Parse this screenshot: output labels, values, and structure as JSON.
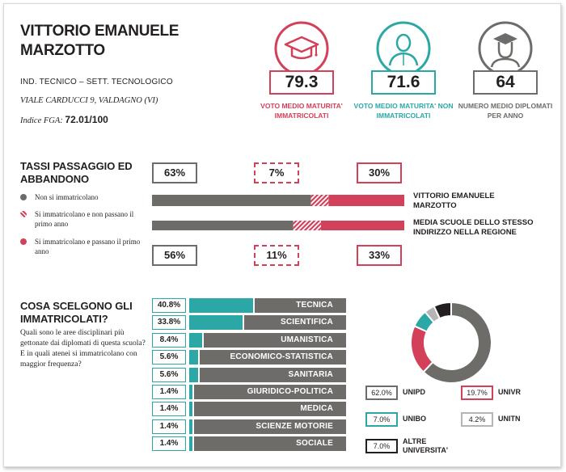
{
  "school": {
    "name": "VITTORIO EMANUELE MARZOTTO",
    "type": "IND. TECNICO – SETT. TECNOLOGICO",
    "address": "VIALE CARDUCCI 9, VALDAGNO (VI)",
    "fga_label": "Indice FGA:",
    "fga_value": "72.01/100"
  },
  "stats": [
    {
      "value": "79.3",
      "label": "VOTO MEDIO MATURITA' IMMATRICOLATI",
      "color": "#d2405a",
      "icon": "graduation-cap-icon"
    },
    {
      "value": "71.6",
      "label": "VOTO MEDIO MATURITA' NON IMMATRICOLATI",
      "color": "#2ba8a6",
      "icon": "person-icon"
    },
    {
      "value": "64",
      "label": "NUMERO MEDIO DIPLOMATI PER ANNO",
      "color": "#6d6c69",
      "icon": "graduate-person-icon"
    }
  ],
  "passage": {
    "title": "TASSI PASSAGGIO ED ABBANDONO",
    "legend": [
      {
        "label": "Non si immatricolano",
        "color": "#6d6c69",
        "pattern": "solid"
      },
      {
        "label": "Si immatricolano e non passano il primo anno",
        "color": "#d2405a",
        "pattern": "hatched"
      },
      {
        "label": "Si immatricolano e passano il primo anno",
        "color": "#d2405a",
        "pattern": "solid"
      }
    ],
    "school_label": "VITTORIO EMANUELE MARZOTTO",
    "region_label": "MEDIA SCUOLE DELLO STESSO INDIRIZZO NELLA REGIONE",
    "school_pcts": [
      "63%",
      "7%",
      "30%"
    ],
    "region_pcts": [
      "56%",
      "11%",
      "33%"
    ]
  },
  "choices": {
    "title": "COSA SCELGONO GLI IMMATRICOLATI?",
    "description": "Quali sono le aree disciplinari più gettonate dai diplomati di questa scuola? E in quali atenei si immatricolano con maggior frequenza?",
    "accent": "#2ba8a6",
    "bar_color": "#6d6c69"
  },
  "universities": {
    "items": [
      {
        "pct": "62.0%",
        "name": "UNIPD",
        "color": "#6d6c69"
      },
      {
        "pct": "19.7%",
        "name": "UNIVR",
        "color": "#d2405a"
      },
      {
        "pct": "7.0%",
        "name": "UNIBO",
        "color": "#2ba8a6"
      },
      {
        "pct": "4.2%",
        "name": "UNITN",
        "color": "#b5b5b5"
      },
      {
        "pct": "7.0%",
        "name": "ALTRE UNIVERSITA'",
        "color": "#231f20"
      }
    ]
  },
  "chart_data": [
    {
      "type": "bar",
      "title": "TASSI PASSAGGIO ED ABBANDONO",
      "stacked": true,
      "categories": [
        "VITTORIO EMANUELE MARZOTTO",
        "MEDIA SCUOLE DELLO STESSO INDIRIZZO NELLA REGIONE"
      ],
      "series": [
        {
          "name": "Non si immatricolano",
          "values": [
            63,
            56
          ],
          "color": "#6d6c69"
        },
        {
          "name": "Si immatricolano e non passano il primo anno",
          "values": [
            7,
            11
          ],
          "color": "#d2405a"
        },
        {
          "name": "Si immatricolano e passano il primo anno",
          "values": [
            30,
            33
          ],
          "color": "#d2405a"
        }
      ]
    },
    {
      "type": "bar",
      "title": "COSA SCELGONO GLI IMMATRICOLATI?",
      "categories": [
        "TECNICA",
        "SCIENTIFICA",
        "UMANISTICA",
        "ECONOMICO-STATISTICA",
        "SANITARIA",
        "GIURIDICO-POLITICA",
        "MEDICA",
        "SCIENZE MOTORIE",
        "SOCIALE"
      ],
      "values": [
        40.8,
        33.8,
        8.4,
        5.6,
        5.6,
        1.4,
        1.4,
        1.4,
        1.4
      ],
      "labels": [
        "40.8%",
        "33.8%",
        "8.4%",
        "5.6%",
        "5.6%",
        "1.4%",
        "1.4%",
        "1.4%",
        "1.4%"
      ]
    },
    {
      "type": "pie",
      "categories": [
        "UNIPD",
        "UNIVR",
        "UNIBO",
        "UNITN",
        "ALTRE UNIVERSITA'"
      ],
      "values": [
        62.0,
        19.7,
        7.0,
        4.2,
        7.0
      ],
      "colors": [
        "#6d6c69",
        "#d2405a",
        "#2ba8a6",
        "#b5b5b5",
        "#231f20"
      ]
    }
  ]
}
